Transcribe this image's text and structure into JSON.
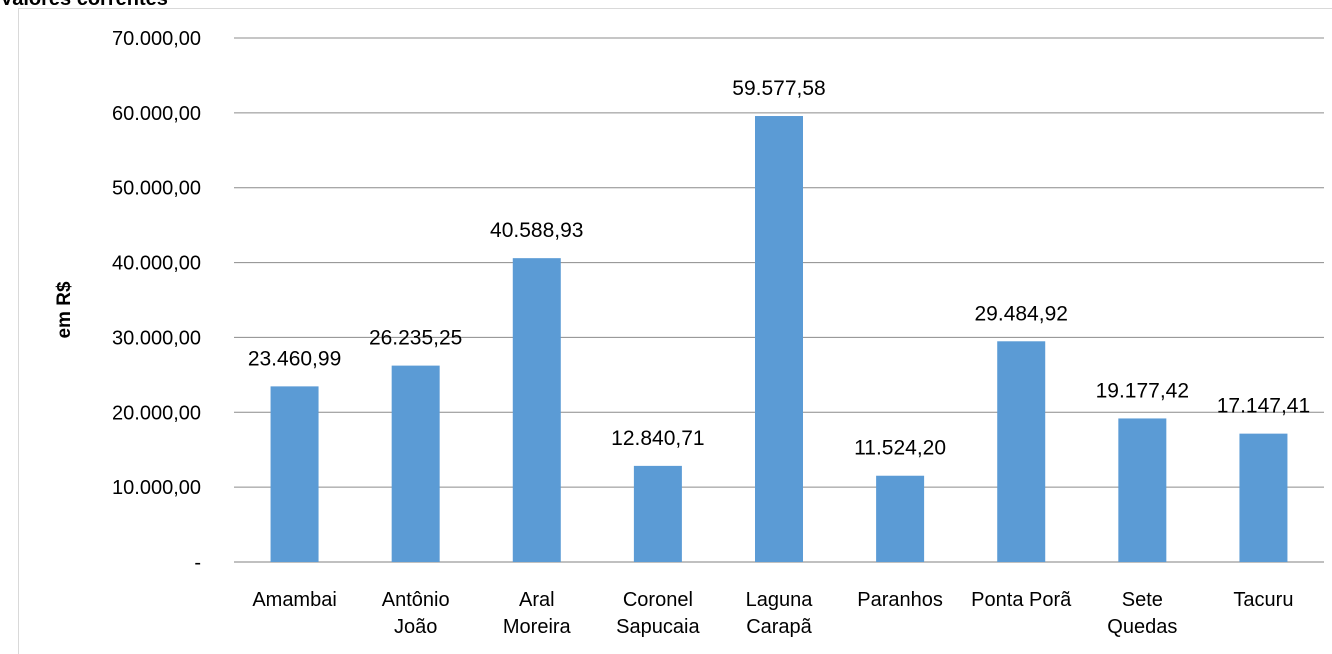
{
  "header": {
    "clipped_title": "Valores correntes"
  },
  "chart_data": {
    "type": "bar",
    "categories": [
      [
        "Amambai"
      ],
      [
        "Antônio",
        "João"
      ],
      [
        "Aral",
        "Moreira"
      ],
      [
        "Coronel",
        "Sapucaia"
      ],
      [
        "Laguna",
        "Carapã"
      ],
      [
        "Paranhos"
      ],
      [
        "Ponta Porã"
      ],
      [
        "Sete",
        "Quedas"
      ],
      [
        "Tacuru"
      ]
    ],
    "values": [
      23460.99,
      26235.25,
      40588.93,
      12840.71,
      59577.58,
      11524.2,
      29484.92,
      19177.42,
      17147.41
    ],
    "data_labels": [
      "23.460,99",
      "26.235,25",
      "40.588,93",
      "12.840,71",
      "59.577,58",
      "11.524,20",
      "29.484,92",
      "19.177,42",
      "17.147,41"
    ],
    "ylabel": "em R$",
    "ylim": [
      0,
      70000
    ],
    "y_ticks": [
      0,
      10000,
      20000,
      30000,
      40000,
      50000,
      60000,
      70000
    ],
    "y_tick_labels": [
      "-",
      "10.000,00",
      "20.000,00",
      "30.000,00",
      "40.000,00",
      "50.000,00",
      "60.000,00",
      "70.000,00"
    ],
    "grid": true,
    "legend": "none",
    "bar_color": "#5b9bd5",
    "grid_color": "#8c8c8c"
  }
}
